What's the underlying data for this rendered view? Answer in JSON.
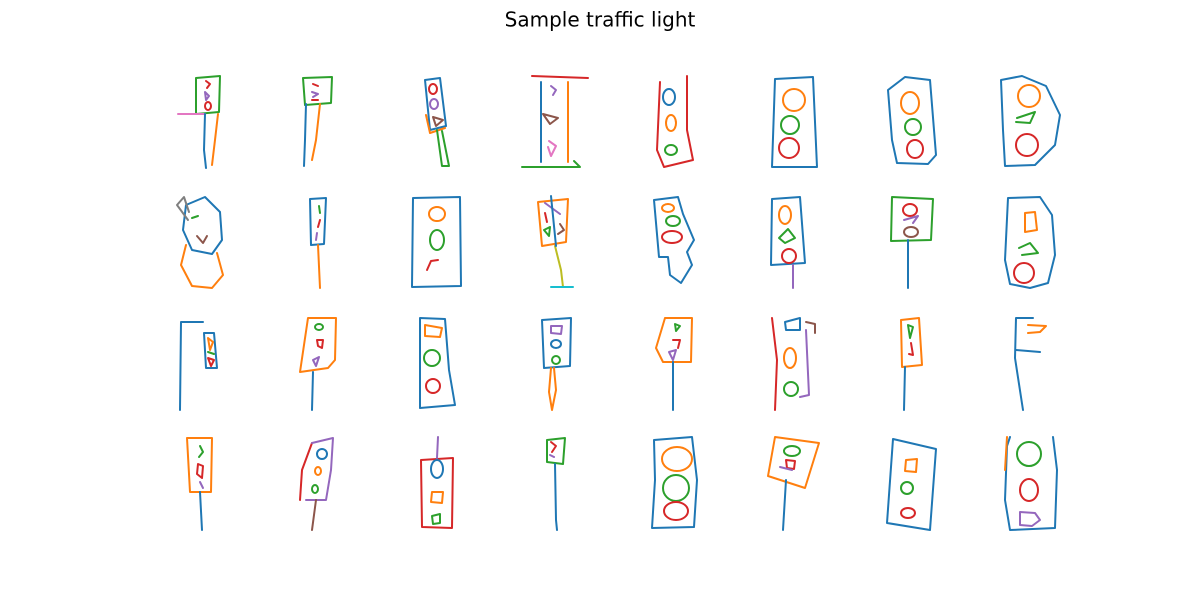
{
  "title": "Sample traffic light"
}
